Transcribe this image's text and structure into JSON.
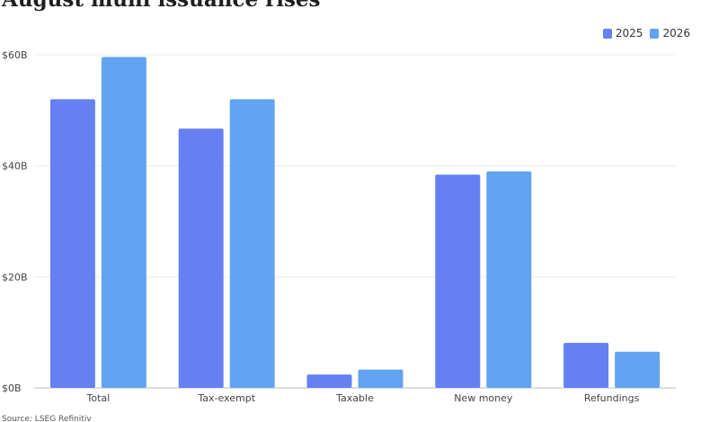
{
  "chart_data": {
    "type": "bar",
    "title": "August muni issuance rises",
    "categories": [
      "Total",
      "Tax-exempt",
      "Taxable",
      "New money",
      "Refundings"
    ],
    "series": [
      {
        "name": "2025",
        "color": "#6680f2",
        "values": [
          52,
          46.7,
          2.4,
          38.4,
          8.1
        ]
      },
      {
        "name": "2026",
        "color": "#62a3f2",
        "values": [
          59.6,
          52,
          3.3,
          39,
          6.5
        ]
      }
    ],
    "yticks": [
      "$0B",
      "$20B",
      "$40B",
      "$60B"
    ],
    "ytick_values": [
      0,
      20,
      40,
      60
    ],
    "ylim": [
      0,
      60
    ],
    "grid": true,
    "legend_position": "top-right",
    "xlabel": "",
    "ylabel": "",
    "source": "Source: LSEG Refinitiv"
  }
}
